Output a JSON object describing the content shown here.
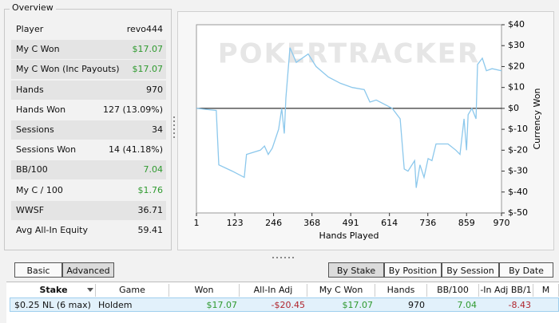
{
  "overview": {
    "title": "Overview",
    "rows": [
      {
        "label": "Player",
        "value": "revo444"
      },
      {
        "label": "My C Won",
        "value": "$17.07"
      },
      {
        "label": "My C Won (Inc Payouts)",
        "value": "$17.07"
      },
      {
        "label": "Hands",
        "value": "970"
      },
      {
        "label": "Hands Won",
        "value": "127 (13.09%)"
      },
      {
        "label": "Sessions",
        "value": "34"
      },
      {
        "label": "Sessions Won",
        "value": "14 (41.18%)"
      },
      {
        "label": "BB/100",
        "value": "7.04"
      },
      {
        "label": "My C / 100",
        "value": "$1.76"
      },
      {
        "label": "WWSF",
        "value": "36.71"
      },
      {
        "label": "Avg All-In Equity",
        "value": "59.41"
      }
    ]
  },
  "chart_data": {
    "type": "line",
    "watermark": "POKERTRACKER",
    "x_label": "Hands Played",
    "y_label": "Currency Won",
    "x": [
      1,
      64,
      72,
      115,
      153,
      160,
      204,
      217,
      229,
      242,
      262,
      272,
      280,
      285,
      298,
      318,
      356,
      381,
      420,
      458,
      496,
      534,
      552,
      572,
      597,
      623,
      648,
      661,
      673,
      694,
      699,
      711,
      724,
      737,
      749,
      762,
      800,
      825,
      838,
      851,
      859,
      864,
      876,
      889,
      894,
      909,
      922,
      940,
      970
    ],
    "series": [
      {
        "name": "Currency Won",
        "color": "#8cc8ec",
        "values": [
          0,
          -1,
          -27,
          -30,
          -33,
          -22,
          -20,
          -18,
          -22,
          -19,
          -10,
          0,
          -12,
          5,
          29,
          22,
          26,
          20,
          15,
          12,
          10,
          9,
          3,
          4,
          2,
          0,
          -5,
          -29,
          -30,
          -25,
          -38,
          -27,
          -33,
          -24,
          -25,
          -17,
          -17,
          -20,
          -22,
          -5,
          -20,
          -3,
          0,
          -5,
          21,
          24,
          18,
          19,
          18
        ]
      }
    ],
    "xlim": [
      1,
      970
    ],
    "xticks": [
      1,
      123,
      246,
      368,
      491,
      614,
      736,
      859,
      970
    ],
    "ylim": [
      -50,
      40
    ],
    "yticks": [
      {
        "value": 40,
        "label": "$40"
      },
      {
        "value": 30,
        "label": "$30"
      },
      {
        "value": 20,
        "label": "$20"
      },
      {
        "value": 10,
        "label": "$10"
      },
      {
        "value": 0,
        "label": "$0"
      },
      {
        "value": -10,
        "label": "$-10"
      },
      {
        "value": -20,
        "label": "$-20"
      },
      {
        "value": -30,
        "label": "$-30"
      },
      {
        "value": -40,
        "label": "$-40"
      },
      {
        "value": -50,
        "label": "$-50"
      }
    ],
    "zero_line": true,
    "grid": false
  },
  "view_tabs": [
    "Basic",
    "Advanced"
  ],
  "group_tabs": [
    "By Stake",
    "By Position",
    "By Session",
    "By Date"
  ],
  "table": {
    "headers": [
      "Stake",
      "Game",
      "Won",
      "All-In Adj",
      "My C Won",
      "Hands",
      "BB/100",
      "-In Adj BB/1",
      "M"
    ],
    "rows": [
      [
        "$0.25 NL (6 max)",
        "Holdem",
        "$17.07",
        "-$20.45",
        "$17.07",
        "970",
        "7.04",
        "-8.43"
      ]
    ]
  }
}
